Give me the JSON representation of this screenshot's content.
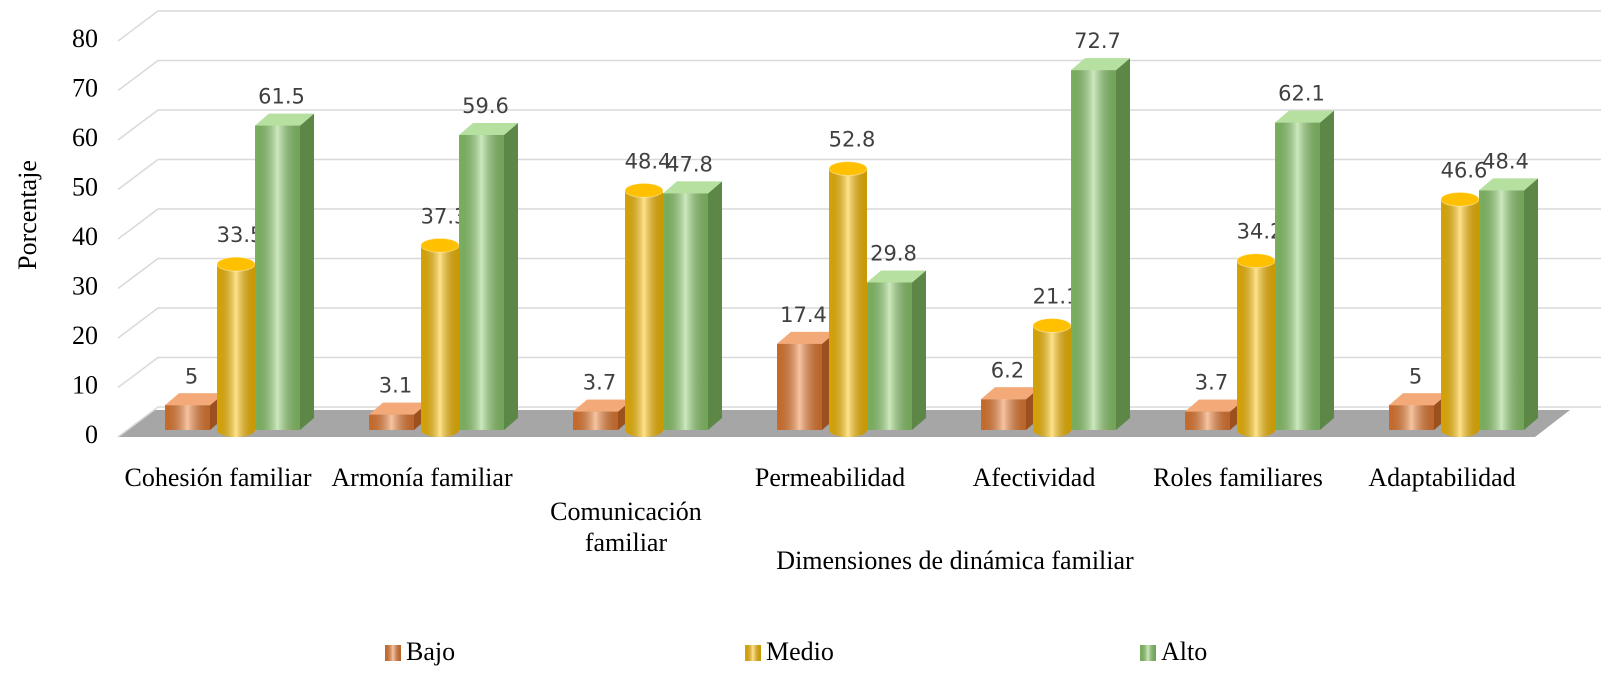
{
  "chart_data": {
    "type": "bar3d",
    "categories": [
      "Cohesión familiar",
      "Armonía familiar",
      "Comunicación familiar",
      "Permeabilidad",
      "Afectividad",
      "Roles familiares",
      "Adaptabilidad"
    ],
    "series": [
      {
        "name": "Bajo",
        "color": "#ed7d31",
        "values": [
          5,
          3.1,
          3.7,
          17.4,
          6.2,
          3.7,
          5
        ]
      },
      {
        "name": "Medio",
        "color": "#ffc000",
        "values": [
          33.5,
          37.3,
          48.4,
          52.8,
          21.1,
          34.2,
          46.6
        ]
      },
      {
        "name": "Alto",
        "color": "#8fcf6e",
        "values": [
          61.5,
          59.6,
          47.8,
          29.8,
          72.7,
          62.1,
          48.4
        ]
      }
    ],
    "x_label": "Dimensiones de dinámica familiar",
    "y_label": "Porcentaje",
    "ylim": [
      0,
      80
    ],
    "yticks": [
      0,
      10,
      20,
      30,
      40,
      50,
      60,
      70,
      80
    ],
    "grid": true
  }
}
